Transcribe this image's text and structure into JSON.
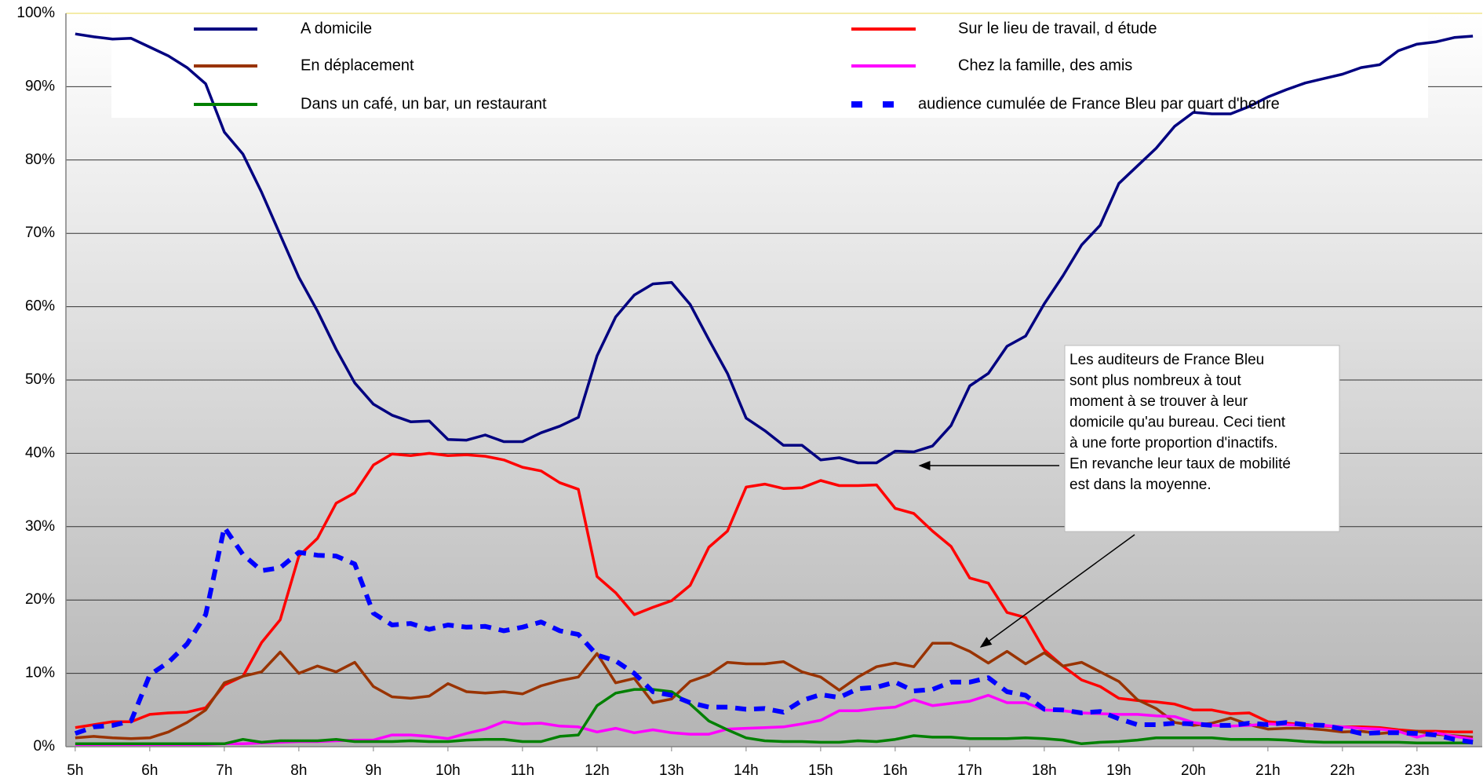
{
  "chart_data": {
    "type": "line",
    "x": [
      5,
      5.25,
      5.5,
      5.75,
      6,
      6.25,
      6.5,
      6.75,
      7,
      7.25,
      7.5,
      7.75,
      8,
      8.25,
      8.5,
      8.75,
      9,
      9.25,
      9.5,
      9.75,
      10,
      10.25,
      10.5,
      10.75,
      11,
      11.25,
      11.5,
      11.75,
      12,
      12.25,
      12.5,
      12.75,
      13,
      13.25,
      13.5,
      13.75,
      14,
      14.25,
      14.5,
      14.75,
      15,
      15.25,
      15.5,
      15.75,
      16,
      16.25,
      16.5,
      16.75,
      17,
      17.25,
      17.5,
      17.75,
      18,
      18.25,
      18.5,
      18.75,
      19,
      19.25,
      19.5,
      19.75,
      20,
      20.25,
      20.5,
      20.75,
      21,
      21.25,
      21.5,
      21.75,
      22,
      22.25,
      22.5,
      22.75,
      23,
      23.25,
      23.5,
      23.75
    ],
    "xlim": [
      4.875,
      23.875
    ],
    "xticks": [
      {
        "value": 5,
        "label": "5h"
      },
      {
        "value": 6,
        "label": "6h"
      },
      {
        "value": 7,
        "label": "7h"
      },
      {
        "value": 8,
        "label": "8h"
      },
      {
        "value": 9,
        "label": "9h"
      },
      {
        "value": 10,
        "label": "10h"
      },
      {
        "value": 11,
        "label": "11h"
      },
      {
        "value": 12,
        "label": "12h"
      },
      {
        "value": 13,
        "label": "13h"
      },
      {
        "value": 14,
        "label": "14h"
      },
      {
        "value": 15,
        "label": "15h"
      },
      {
        "value": 16,
        "label": "16h"
      },
      {
        "value": 17,
        "label": "17h"
      },
      {
        "value": 18,
        "label": "18h"
      },
      {
        "value": 19,
        "label": "19h"
      },
      {
        "value": 20,
        "label": "20h"
      },
      {
        "value": 21,
        "label": "21h"
      },
      {
        "value": 22,
        "label": "22h"
      },
      {
        "value": 23,
        "label": "23h"
      }
    ],
    "ylim": [
      0,
      100
    ],
    "yticks": [
      {
        "value": 0,
        "label": "0%"
      },
      {
        "value": 10,
        "label": "10%"
      },
      {
        "value": 20,
        "label": "20%"
      },
      {
        "value": 30,
        "label": "30%"
      },
      {
        "value": 40,
        "label": "40%"
      },
      {
        "value": 50,
        "label": "50%"
      },
      {
        "value": 60,
        "label": "60%"
      },
      {
        "value": 70,
        "label": "70%"
      },
      {
        "value": 80,
        "label": "80%"
      },
      {
        "value": 90,
        "label": "90%"
      },
      {
        "value": 100,
        "label": "100%"
      }
    ],
    "grid": true,
    "legend": "top",
    "series": [
      {
        "name": "A domicile",
        "color": "#000080",
        "style": "solid",
        "values": [
          97.2,
          96.8,
          96.5,
          96.6,
          95.4,
          94.2,
          92.6,
          90.4,
          83.8,
          80.8,
          75.6,
          69.8,
          64,
          59.4,
          54.2,
          49.6,
          46.7,
          45.2,
          44.3,
          44.4,
          41.9,
          41.8,
          42.5,
          41.6,
          41.6,
          42.8,
          43.7,
          44.9,
          53.3,
          58.6,
          61.6,
          63.1,
          63.3,
          60.3,
          55.5,
          50.9,
          44.8,
          43.1,
          41.1,
          41.1,
          39.1,
          39.4,
          38.7,
          38.7,
          40.3,
          40.2,
          41,
          43.8,
          49.2,
          50.9,
          54.6,
          56,
          60.4,
          64.2,
          68.4,
          71.1,
          76.8,
          79.2,
          81.6,
          84.6,
          86.5,
          86.3,
          86.3,
          87.3,
          88.6,
          89.6,
          90.5,
          91.1,
          91.7,
          92.6,
          93,
          94.9,
          95.8,
          96.1,
          96.7,
          96.9
        ]
      },
      {
        "name": "Sur le lieu de travail, d étude",
        "color": "#ff0000",
        "style": "solid",
        "values": [
          2.6,
          3,
          3.4,
          3.4,
          4.4,
          4.6,
          4.7,
          5.3,
          8.4,
          9.6,
          14.2,
          17.3,
          26,
          28.4,
          33.2,
          34.6,
          38.4,
          39.9,
          39.7,
          40,
          39.7,
          39.8,
          39.6,
          39.1,
          38.1,
          37.6,
          36,
          35.1,
          23.2,
          21,
          18,
          19,
          19.9,
          22,
          27.2,
          29.4,
          35.4,
          35.8,
          35.2,
          35.3,
          36.3,
          35.6,
          35.6,
          35.7,
          32.5,
          31.8,
          29.4,
          27.3,
          23,
          22.3,
          18.3,
          17.6,
          13.2,
          11,
          9.1,
          8.2,
          6.6,
          6.3,
          6.1,
          5.8,
          5,
          5,
          4.5,
          4.6,
          3.4,
          3.2,
          3,
          2.8,
          2.7,
          2.7,
          2.6,
          2.3,
          2.1,
          2.1,
          2,
          2
        ]
      },
      {
        "name": "En déplacement",
        "color": "#993300",
        "style": "solid",
        "values": [
          1.2,
          1.4,
          1.2,
          1.1,
          1.2,
          2,
          3.3,
          5,
          8.7,
          9.6,
          10.2,
          12.9,
          10,
          11,
          10.2,
          11.5,
          8.2,
          6.8,
          6.6,
          6.9,
          8.6,
          7.5,
          7.3,
          7.5,
          7.2,
          8.3,
          9,
          9.5,
          12.7,
          8.7,
          9.3,
          6,
          6.5,
          8.9,
          9.8,
          11.5,
          11.3,
          11.3,
          11.6,
          10.2,
          9.5,
          7.7,
          9.5,
          10.9,
          11.4,
          10.9,
          14.1,
          14.1,
          13,
          11.4,
          13,
          11.3,
          12.8,
          11,
          11.5,
          10.2,
          8.9,
          6.4,
          5.2,
          3.3,
          2.9,
          3.2,
          3.9,
          3,
          2.4,
          2.5,
          2.5,
          2.3,
          2,
          2.1,
          1.8,
          2,
          2.1,
          1.7,
          1.5,
          1.3
        ]
      },
      {
        "name": "Chez la famille, des amis",
        "color": "#ff00ff",
        "style": "solid",
        "values": [
          0.3,
          0.3,
          0.3,
          0.3,
          0.3,
          0.3,
          0.3,
          0.3,
          0.4,
          0.4,
          0.5,
          0.6,
          0.7,
          0.7,
          0.8,
          0.9,
          0.9,
          1.6,
          1.6,
          1.4,
          1.1,
          1.8,
          2.4,
          3.4,
          3.1,
          3.2,
          2.8,
          2.7,
          2,
          2.5,
          1.9,
          2.3,
          1.9,
          1.7,
          1.7,
          2.4,
          2.5,
          2.6,
          2.7,
          3.1,
          3.6,
          4.9,
          4.9,
          5.2,
          5.4,
          6.4,
          5.6,
          5.9,
          6.2,
          7,
          6,
          6,
          5,
          4.9,
          4.6,
          4.5,
          4.4,
          4.4,
          4.2,
          4.1,
          3.3,
          2.9,
          2.8,
          2.9,
          3.1,
          3,
          2.9,
          2.9,
          2.7,
          2.5,
          2.4,
          2.1,
          1.3,
          1.9,
          1.4,
          1
        ]
      },
      {
        "name": "Dans un café, un bar, un restaurant",
        "color": "#008000",
        "style": "solid",
        "values": [
          0.4,
          0.4,
          0.4,
          0.4,
          0.4,
          0.4,
          0.4,
          0.4,
          0.4,
          1,
          0.6,
          0.8,
          0.8,
          0.8,
          1,
          0.7,
          0.7,
          0.7,
          0.8,
          0.7,
          0.7,
          0.9,
          1,
          1,
          0.7,
          0.7,
          1.4,
          1.6,
          5.6,
          7.3,
          7.8,
          7.8,
          7.5,
          5.8,
          3.5,
          2.3,
          1.2,
          0.8,
          0.7,
          0.7,
          0.6,
          0.6,
          0.8,
          0.7,
          1,
          1.5,
          1.3,
          1.3,
          1.1,
          1.1,
          1.1,
          1.2,
          1.1,
          0.9,
          0.4,
          0.6,
          0.7,
          0.9,
          1.2,
          1.2,
          1.2,
          1.2,
          1,
          1,
          1,
          0.9,
          0.7,
          0.6,
          0.6,
          0.6,
          0.6,
          0.6,
          0.5,
          0.5,
          0.5,
          0.5
        ]
      },
      {
        "name": "audience cumulée de France Bleu par quart d'heure",
        "color": "#0000ff",
        "style": "dashed",
        "values": [
          1.8,
          2.7,
          2.9,
          3.5,
          9.8,
          11.5,
          14,
          18,
          29.9,
          26.2,
          24,
          24.4,
          26.5,
          26.1,
          26,
          24.9,
          18.2,
          16.6,
          16.8,
          16,
          16.6,
          16.3,
          16.4,
          15.8,
          16.3,
          17,
          15.8,
          15.3,
          12.5,
          11.7,
          10,
          7.5,
          7,
          6,
          5.4,
          5.4,
          5.1,
          5.2,
          4.7,
          6.3,
          7.1,
          6.7,
          7.9,
          8.1,
          8.8,
          7.6,
          7.8,
          8.8,
          8.8,
          9.4,
          7.5,
          7,
          5.1,
          5,
          4.6,
          4.8,
          3.8,
          3,
          3,
          3.2,
          3.1,
          2.9,
          2.9,
          3.2,
          3,
          3.3,
          3,
          2.9,
          2.4,
          1.8,
          1.9,
          1.9,
          1.8,
          1.6,
          1,
          0.6
        ]
      }
    ],
    "annotation": [
      "Les auditeurs de France Bleu",
      "sont plus nombreux à tout",
      "moment à se trouver à leur",
      "domicile qu'au bureau. Ceci tient",
      "à une forte proportion d'inactifs.",
      "En revanche leur taux de mobilité",
      "est dans la moyenne."
    ]
  }
}
